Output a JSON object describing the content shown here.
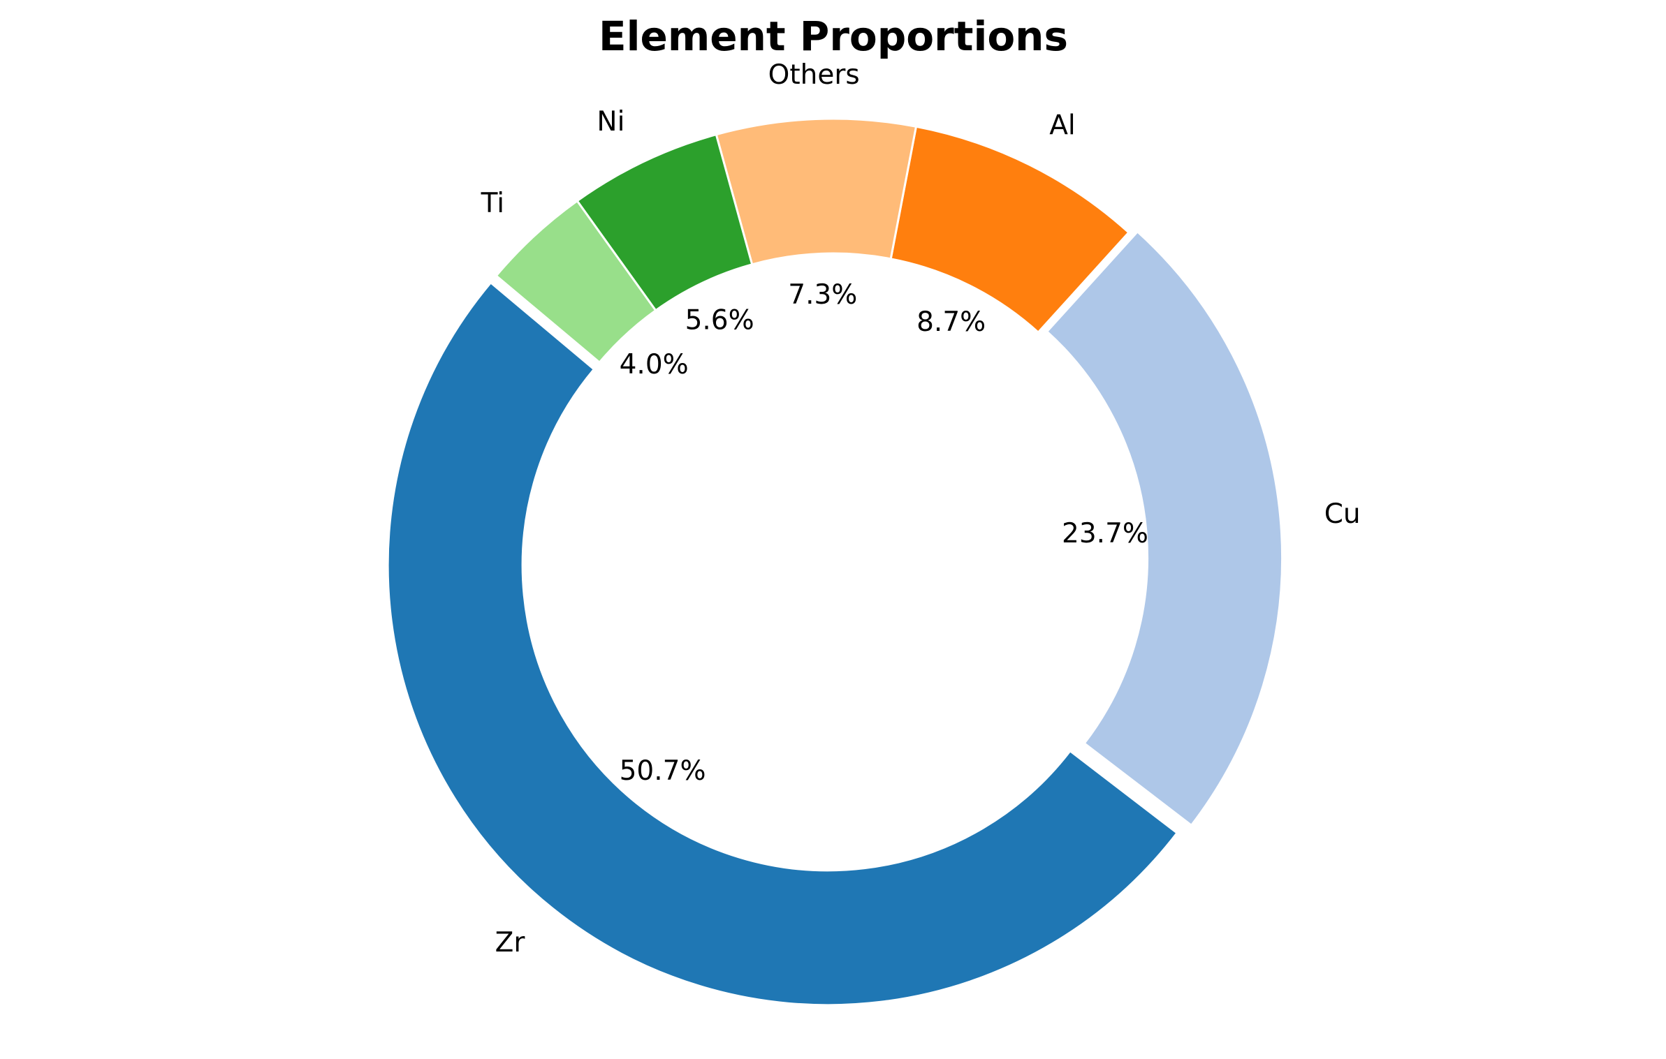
{
  "chart_data": {
    "type": "pie",
    "variant": "donut",
    "title": "Element Proportions",
    "categories": [
      "Zr",
      "Cu",
      "Al",
      "Others",
      "Ni",
      "Ti"
    ],
    "values": [
      50.7,
      23.7,
      8.7,
      7.3,
      5.6,
      4.0
    ],
    "value_labels": [
      "50.7%",
      "23.7%",
      "8.7%",
      "7.3%",
      "5.6%",
      "4.0%"
    ],
    "colors": [
      "#1f77b4",
      "#aec7e8",
      "#ff7f0e",
      "#ffbb78",
      "#2ca02c",
      "#98df8a"
    ],
    "start_angle_deg": 140,
    "direction": "counterclockwise",
    "explode": [
      0.02,
      0.02,
      0,
      0,
      0,
      0
    ],
    "legend": "none"
  }
}
